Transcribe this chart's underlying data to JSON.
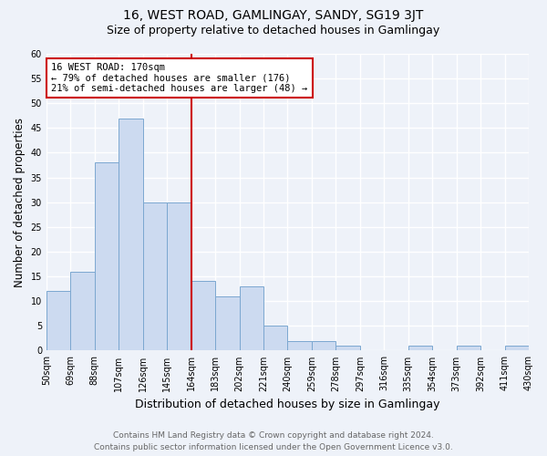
{
  "title": "16, WEST ROAD, GAMLINGAY, SANDY, SG19 3JT",
  "subtitle": "Size of property relative to detached houses in Gamlingay",
  "xlabel": "Distribution of detached houses by size in Gamlingay",
  "ylabel": "Number of detached properties",
  "bin_labels": [
    "50sqm",
    "69sqm",
    "88sqm",
    "107sqm",
    "126sqm",
    "145sqm",
    "164sqm",
    "183sqm",
    "202sqm",
    "221sqm",
    "240sqm",
    "259sqm",
    "278sqm",
    "297sqm",
    "316sqm",
    "335sqm",
    "354sqm",
    "373sqm",
    "392sqm",
    "411sqm",
    "430sqm"
  ],
  "bar_values": [
    12,
    16,
    38,
    47,
    30,
    30,
    14,
    11,
    13,
    5,
    2,
    2,
    1,
    0,
    0,
    1,
    0,
    1,
    0,
    1
  ],
  "bar_color": "#ccdaf0",
  "bar_edge_color": "#7ba7d0",
  "ylim": [
    0,
    60
  ],
  "yticks": [
    0,
    5,
    10,
    15,
    20,
    25,
    30,
    35,
    40,
    45,
    50,
    55,
    60
  ],
  "vline_color": "#cc0000",
  "annotation_title": "16 WEST ROAD: 170sqm",
  "annotation_line1": "← 79% of detached houses are smaller (176)",
  "annotation_line2": "21% of semi-detached houses are larger (48) →",
  "annotation_box_color": "#cc0000",
  "footer1": "Contains HM Land Registry data © Crown copyright and database right 2024.",
  "footer2": "Contains public sector information licensed under the Open Government Licence v3.0.",
  "bg_color": "#eef2f9",
  "grid_color": "#ffffff",
  "title_fontsize": 10,
  "subtitle_fontsize": 9,
  "axis_label_fontsize": 8.5,
  "tick_fontsize": 7,
  "footer_fontsize": 6.5
}
